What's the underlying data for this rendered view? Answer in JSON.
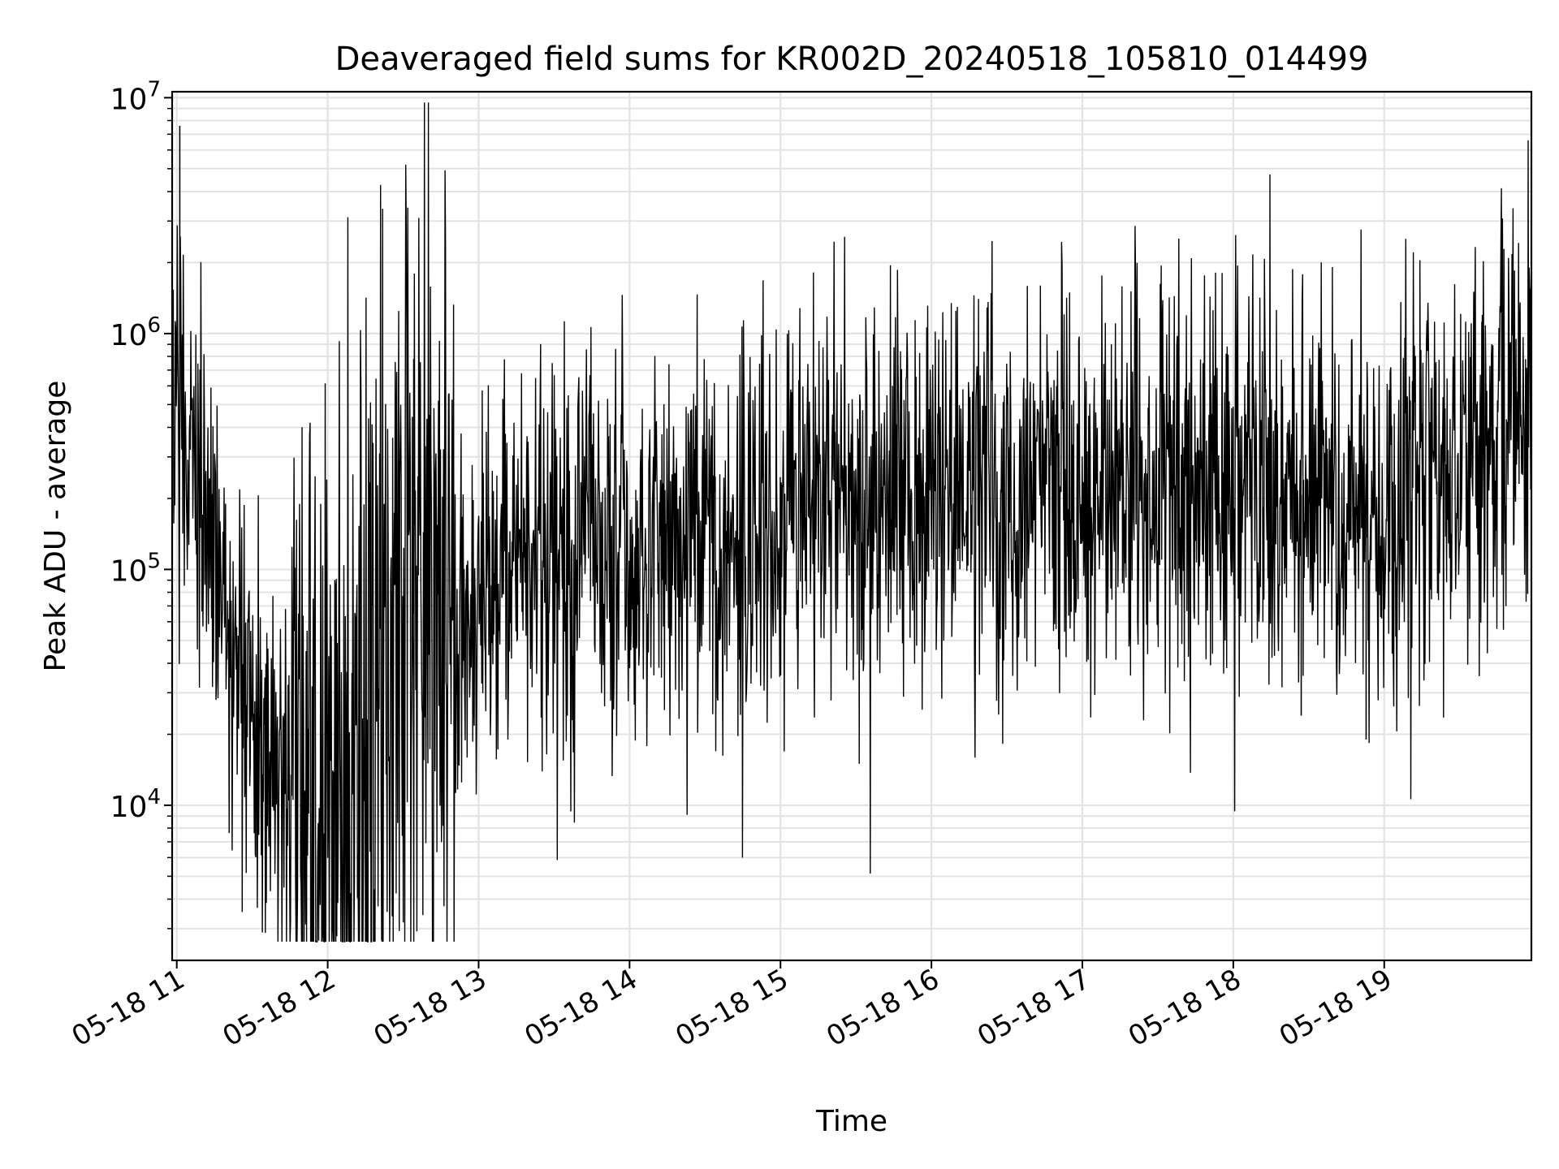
{
  "chart_data": {
    "type": "line",
    "title": "Deaveraged field sums for KR002D_20240518_105810_014499",
    "xlabel": "Time",
    "ylabel": "Peak ADU - average",
    "yscale": "log",
    "ylim": [
      2200,
      10600000
    ],
    "xlim": [
      "2024-05-18 10:58:10",
      "2024-05-18 19:58:30"
    ],
    "grid": true,
    "legend": "none",
    "x_ticks": [
      "05-18 11",
      "05-18 12",
      "05-18 13",
      "05-18 14",
      "05-18 15",
      "05-18 16",
      "05-18 17",
      "05-18 18",
      "05-18 19"
    ],
    "y_ticks": [
      {
        "base": "10",
        "exp": "4",
        "value": 10000
      },
      {
        "base": "10",
        "exp": "5",
        "value": 100000
      },
      {
        "base": "10",
        "exp": "6",
        "value": 1000000
      },
      {
        "base": "10",
        "exp": "7",
        "value": 10000000
      }
    ],
    "series": [
      {
        "color": "#000000",
        "time_unit": "hour of day (2024-05-18)",
        "x": [
          10.97,
          11.0,
          11.1,
          11.2,
          11.35,
          11.45,
          11.55,
          11.7,
          11.85,
          12.0,
          12.1,
          12.25,
          12.35,
          12.5,
          12.65,
          12.8,
          13.0,
          13.25,
          13.5,
          13.75,
          14.0,
          14.25,
          14.5,
          14.75,
          15.0,
          15.25,
          15.5,
          15.75,
          16.0,
          16.25,
          16.5,
          16.75,
          17.0,
          17.25,
          17.5,
          17.75,
          18.0,
          18.25,
          18.5,
          18.75,
          19.0,
          19.25,
          19.5,
          19.65,
          19.8,
          19.97
        ],
        "median": [
          500000,
          350000,
          250000,
          150000,
          60000,
          28000,
          18000,
          14000,
          11000,
          10000,
          12000,
          25000,
          50000,
          70000,
          60000,
          65000,
          85000,
          100000,
          110000,
          115000,
          125000,
          135000,
          145000,
          155000,
          170000,
          185000,
          200000,
          210000,
          220000,
          225000,
          235000,
          240000,
          245000,
          250000,
          255000,
          260000,
          250000,
          240000,
          200000,
          210000,
          240000,
          260000,
          290000,
          420000,
          480000,
          500000
        ]
      }
    ],
    "annotations_notable_peaks": [
      {
        "x": 11.02,
        "y": 7600000
      },
      {
        "x": 12.57,
        "y": 780000
      },
      {
        "x": 19.97,
        "y": 1550000
      },
      {
        "x": 19.65,
        "y": 1200000
      }
    ],
    "annotations_notable_troughs": [
      {
        "x": 12.04,
        "y": 3300
      },
      {
        "x": 18.45,
        "y": 24000
      },
      {
        "x": 18.88,
        "y": 19000
      }
    ]
  }
}
